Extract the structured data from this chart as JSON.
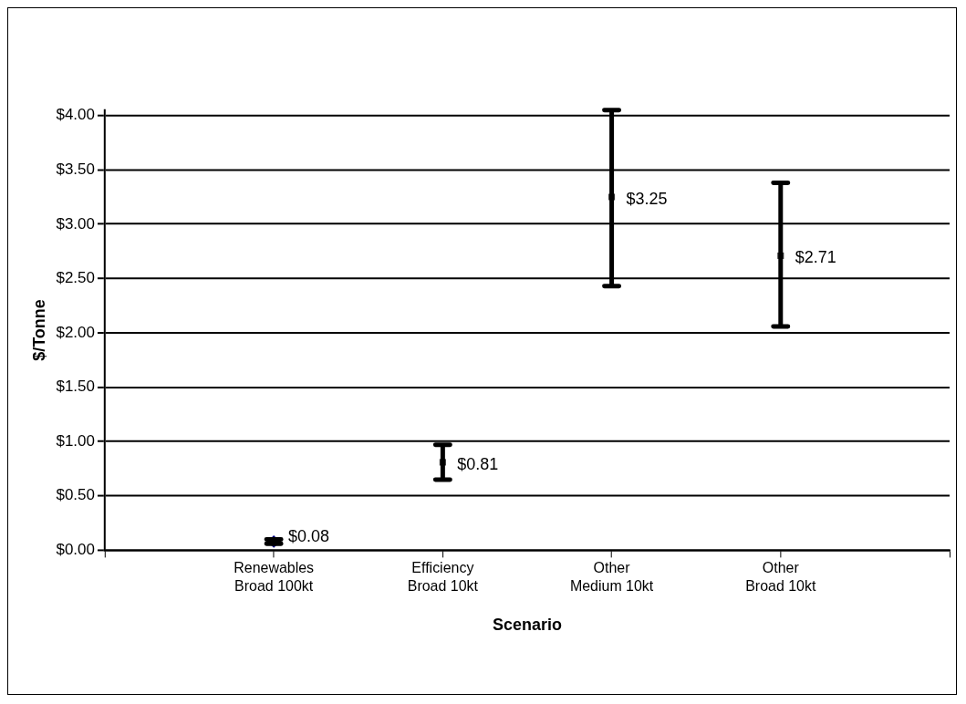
{
  "chart_data": {
    "type": "scatter",
    "xlabel": "Scenario",
    "ylabel": "$/Tonne",
    "categories": [
      null,
      "Renewables Broad 100kt",
      "Efficiency Broad 10kt",
      "Other Medium 10kt",
      "Other Broad 10kt",
      null
    ],
    "series": [
      {
        "color": "#000080",
        "marker": "diamond",
        "values": [
          null,
          0.08,
          null,
          null,
          null,
          null
        ],
        "errors": [
          null,
          [
            0.06,
            0.1
          ],
          null,
          null,
          null,
          null
        ],
        "value_labels": [
          null,
          "$0.08",
          null,
          null,
          null,
          null
        ]
      },
      {
        "color": "#333333",
        "marker": "square",
        "values": [
          null,
          null,
          0.81,
          3.25,
          2.71,
          null
        ],
        "errors": [
          null,
          null,
          [
            0.65,
            0.97
          ],
          [
            2.43,
            4.05
          ],
          [
            2.06,
            3.38
          ],
          null
        ],
        "value_labels": [
          null,
          null,
          "$0.81",
          "$3.25",
          "$2.71",
          null
        ]
      }
    ],
    "ylim": [
      0,
      4.05
    ],
    "yticks": [
      {
        "value": 0,
        "label": "$0.00"
      },
      {
        "value": 0.5,
        "label": "$0.50"
      },
      {
        "value": 1,
        "label": "$1.00"
      },
      {
        "value": 1.5,
        "label": "$1.50"
      },
      {
        "value": 2,
        "label": "$2.00"
      },
      {
        "value": 2.5,
        "label": "$2.50"
      },
      {
        "value": 3,
        "label": "$3.00"
      },
      {
        "value": 3.5,
        "label": "$3.50"
      },
      {
        "value": 4,
        "label": "$4.00"
      }
    ],
    "grid": "y",
    "legend": false
  }
}
